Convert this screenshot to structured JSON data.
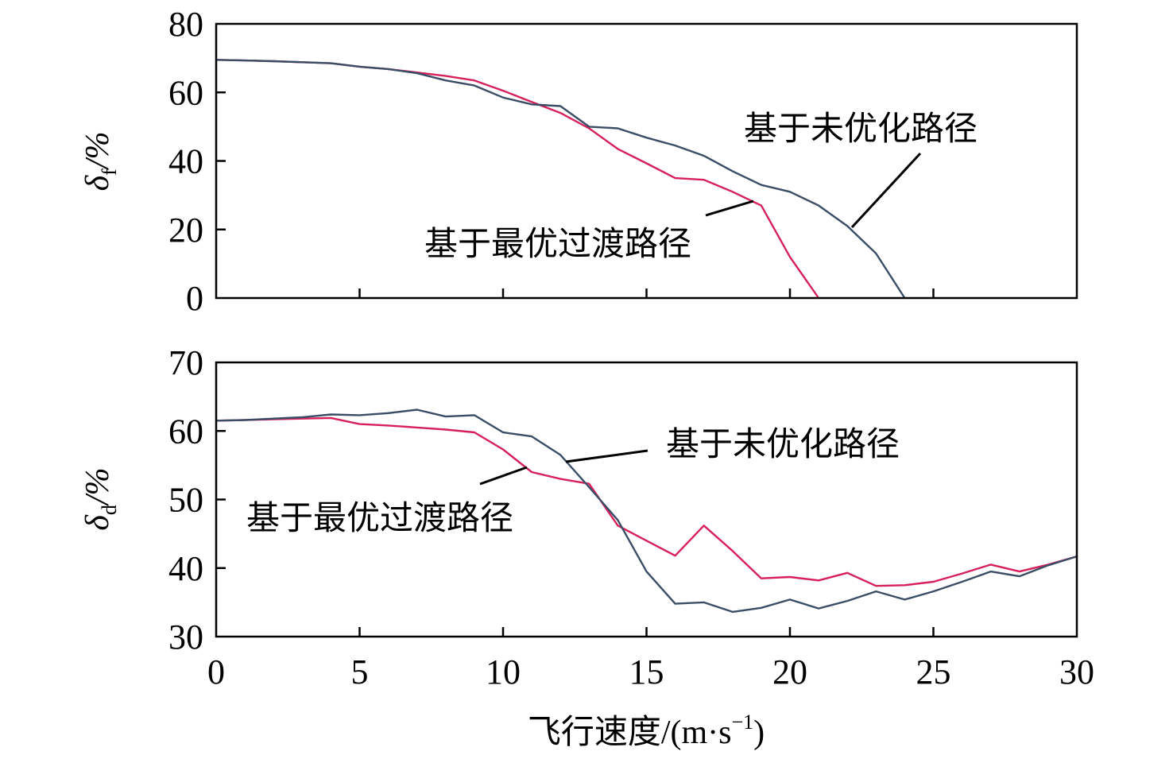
{
  "colors": {
    "optimal": "#d6205a",
    "unoptimized": "#3a4d66",
    "axis": "#000000"
  },
  "xaxis": {
    "label": "飞行速度/(m·s",
    "label_sup": "−1",
    "label_close": ")",
    "range": [
      0,
      30
    ],
    "ticks": [
      "0",
      "5",
      "10",
      "15",
      "20",
      "25",
      "30"
    ]
  },
  "chart_data": [
    {
      "type": "line",
      "ylabel_symbol": "δ",
      "ylabel_sub": "f",
      "ylabel_unit": "/%",
      "ylim": [
        0,
        80
      ],
      "yticks": [
        "0",
        "20",
        "40",
        "60",
        "80"
      ],
      "xlim": [
        0,
        30
      ],
      "series": [
        {
          "key": "optimal",
          "name": "基于最优过渡路径",
          "x": [
            0,
            1,
            2,
            3,
            4,
            5,
            6,
            7,
            8,
            9,
            10,
            11,
            12,
            13,
            14,
            15,
            16,
            17,
            18,
            19,
            20,
            21
          ],
          "y": [
            69.5,
            69.3,
            69.1,
            68.8,
            68.5,
            67.5,
            66.8,
            65.8,
            64.8,
            63.5,
            60.5,
            57.2,
            54,
            49.5,
            43.5,
            39.3,
            35,
            34.5,
            31,
            27,
            12,
            0
          ]
        },
        {
          "key": "unoptimized",
          "name": "基于未优化路径",
          "x": [
            0,
            1,
            2,
            3,
            4,
            5,
            6,
            7,
            8,
            9,
            10,
            11,
            12,
            13,
            14,
            15,
            16,
            17,
            18,
            19,
            20,
            21,
            22,
            23,
            24
          ],
          "y": [
            69.5,
            69.3,
            69.1,
            68.8,
            68.5,
            67.5,
            66.8,
            65.6,
            63.5,
            62,
            58.5,
            56.5,
            56,
            50,
            49.5,
            46.8,
            44.5,
            41.5,
            37,
            33,
            31,
            27,
            21,
            13,
            0
          ]
        }
      ],
      "annotations": [
        {
          "text": "基于未优化路径",
          "series": "unoptimized"
        },
        {
          "text": "基于最优过渡路径",
          "series": "optimal"
        }
      ]
    },
    {
      "type": "line",
      "ylabel_symbol": "δ",
      "ylabel_sub": "d",
      "ylabel_unit": "/%",
      "ylim": [
        30,
        70
      ],
      "yticks": [
        "30",
        "40",
        "50",
        "60",
        "70"
      ],
      "xlim": [
        0,
        30
      ],
      "series": [
        {
          "key": "optimal",
          "name": "基于最优过渡路径",
          "x": [
            0,
            1,
            2,
            3,
            4,
            5,
            6,
            7,
            8,
            9,
            10,
            11,
            12,
            13,
            14,
            15,
            16,
            17,
            18,
            19,
            20,
            21,
            22,
            23,
            24,
            25,
            26,
            27,
            28,
            29,
            30
          ],
          "y": [
            61.5,
            61.6,
            61.7,
            61.8,
            61.9,
            61,
            60.8,
            60.5,
            60.2,
            59.8,
            57.3,
            54,
            53,
            52.3,
            46.2,
            44,
            41.8,
            46.2,
            42.5,
            38.5,
            38.7,
            38.2,
            39.3,
            37.4,
            37.5,
            38,
            39.2,
            40.5,
            39.5,
            40.5,
            41.7
          ]
        },
        {
          "key": "unoptimized",
          "name": "基于未优化路径",
          "x": [
            0,
            1,
            2,
            3,
            4,
            5,
            6,
            7,
            8,
            9,
            10,
            11,
            12,
            13,
            14,
            15,
            16,
            17,
            18,
            19,
            20,
            21,
            22,
            23,
            24,
            25,
            26,
            27,
            28,
            29,
            30
          ],
          "y": [
            61.5,
            61.6,
            61.8,
            62,
            62.4,
            62.3,
            62.6,
            63.1,
            62.1,
            62.3,
            59.8,
            59.2,
            56.5,
            51.8,
            47,
            39.5,
            34.8,
            35,
            33.6,
            34.2,
            35.4,
            34.1,
            35.2,
            36.6,
            35.4,
            36.6,
            38,
            39.5,
            38.8,
            40.4,
            41.7
          ]
        }
      ],
      "annotations": [
        {
          "text": "基于未优化路径",
          "series": "unoptimized"
        },
        {
          "text": "基于最优过渡路径",
          "series": "optimal"
        }
      ]
    }
  ]
}
